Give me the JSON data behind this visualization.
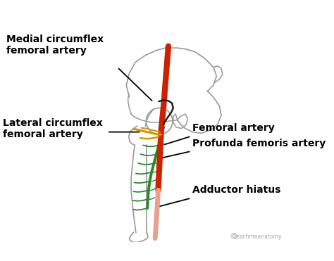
{
  "bg_color": "#ffffff",
  "bone_outline": "#999999",
  "femoral_color": "#cc2200",
  "femoral_lower_color": "#e8a090",
  "profunda_color": "#2a8a2a",
  "lateral_color": "#cc9900",
  "annotation_color": "#000000",
  "labels": {
    "medial": "Medial circumflex\nfemoral artery",
    "lateral": "Lateral circumflex\nfemoral artery",
    "femoral": "Femoral artery",
    "profunda": "Profunda femoris artery",
    "adductor": "Adductor hiatus"
  },
  "watermark": "teachmeanatomy"
}
